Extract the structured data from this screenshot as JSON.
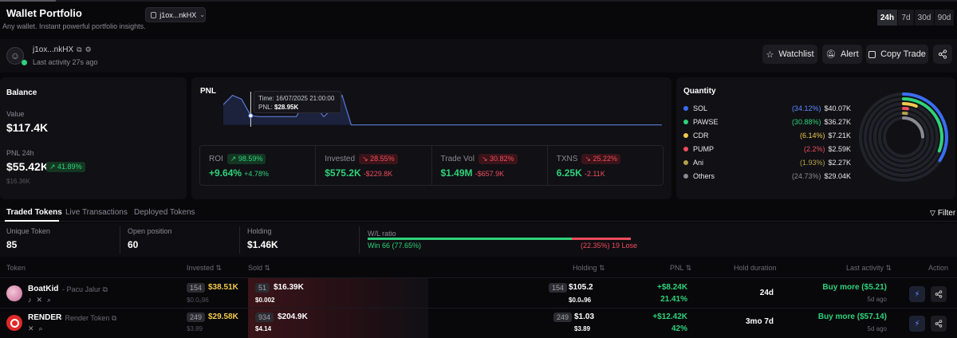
{
  "header": {
    "title": "Wallet Portfolio",
    "subtitle": "Any wallet. Instant powerful portfolio insights.",
    "wallet_select": "j1ox...nkHX",
    "timeframes": [
      "24h",
      "7d",
      "30d",
      "90d"
    ],
    "active_timeframe": "24h"
  },
  "wallet": {
    "address": "j1ox...nkHX",
    "last_activity": "Last activity 27s ago",
    "buttons": {
      "watchlist": "Watchlist",
      "alert": "Alert",
      "copy_trade": "Copy Trade"
    }
  },
  "balance": {
    "title": "Balance",
    "value_label": "Value",
    "value": "$117.4K",
    "pnl_label": "PNL 24h",
    "pnl_value": "$55.42K",
    "pnl_change": "↗ 41.89%",
    "pnl_sub": "$16.36K"
  },
  "pnl": {
    "title": "PNL",
    "tooltip_time": "Time: 16/07/2025 21:00:00",
    "tooltip_pnl": "PNL: ",
    "tooltip_pnl_value": "$28.95K",
    "chart_data": {
      "type": "area",
      "x": [
        0,
        1,
        2,
        3,
        4,
        5,
        6,
        7,
        8,
        9,
        10,
        11,
        12,
        13,
        14,
        15,
        16,
        17,
        18,
        19,
        20,
        21,
        22,
        23,
        24,
        25,
        26,
        27,
        28,
        29,
        30,
        31,
        32,
        33,
        34,
        35,
        36,
        37,
        38,
        39,
        40,
        41,
        42,
        43,
        44,
        45,
        46,
        47,
        48
      ],
      "values": [
        22,
        32,
        28,
        10,
        9,
        9,
        9,
        9,
        9,
        28,
        21,
        9,
        18,
        32,
        0,
        0,
        0,
        0,
        0,
        0,
        0,
        0,
        0,
        0,
        0,
        0,
        0,
        0,
        0,
        0,
        0,
        0,
        0,
        0,
        0,
        0,
        0,
        0,
        0,
        0,
        0,
        0,
        0,
        0,
        0,
        0,
        0,
        0,
        0
      ],
      "ylim": [
        -2,
        36
      ],
      "highlight_index": 3
    },
    "stats": [
      {
        "label": "ROI",
        "chip": "↗ 98.59%",
        "chip_color": "green",
        "value": "+9.64%",
        "value_color": "green",
        "sub": "+4.78%",
        "sub_color": "green"
      },
      {
        "label": "Invested",
        "chip": "↘ 28.55%",
        "chip_color": "red",
        "value": "$575.2K",
        "value_color": "green",
        "sub": "-$229.8K",
        "sub_color": "red"
      },
      {
        "label": "Trade Vol",
        "chip": "↘ 30.82%",
        "chip_color": "red",
        "value": "$1.49M",
        "value_color": "green",
        "sub": "-$657.9K",
        "sub_color": "red"
      },
      {
        "label": "TXNS",
        "chip": "↘ 25.22%",
        "chip_color": "red",
        "value": "6.25K",
        "value_color": "green",
        "sub": "-2.11K",
        "sub_color": "red"
      }
    ]
  },
  "quantity": {
    "title": "Quantity",
    "items": [
      {
        "name": "SOL",
        "pct": "(34.12%)",
        "pct_value": 34.12,
        "value": "$40.07K",
        "color": "#3b6df5",
        "pct_color": "#5b8bff"
      },
      {
        "name": "PAWSE",
        "pct": "(30.88%)",
        "pct_value": 30.88,
        "value": "$36.27K",
        "color": "#2fd27a",
        "pct_color": "#2fd27a"
      },
      {
        "name": "CDR",
        "pct": "(6.14%)",
        "pct_value": 6.14,
        "value": "$7.21K",
        "color": "#f2c94c",
        "pct_color": "#f2c94c"
      },
      {
        "name": "PUMP",
        "pct": "(2.2%)",
        "pct_value": 2.2,
        "value": "$2.59K",
        "color": "#ef4c5c",
        "pct_color": "#ef4c5c"
      },
      {
        "name": "Ani",
        "pct": "(1.93%)",
        "pct_value": 1.93,
        "value": "$2.27K",
        "color": "#b5a14a",
        "pct_color": "#b5a14a"
      },
      {
        "name": "Others",
        "pct": "(24.73%)",
        "pct_value": 24.73,
        "value": "$29.04K",
        "color": "#8a8a93",
        "pct_color": "#8a8a93"
      }
    ]
  },
  "tabs": {
    "items": [
      "Traded Tokens",
      "Live Transactions",
      "Deployed Tokens"
    ],
    "active": "Traded Tokens",
    "filter": "Filter"
  },
  "summary": {
    "unique_label": "Unique Token",
    "unique_value": "85",
    "open_label": "Open position",
    "open_value": "60",
    "holding_label": "Holding",
    "holding_value": "$1.46K",
    "wl_label": "W/L ratio",
    "win_text": "Win 66 (77.65%)",
    "lose_text": "(22.35%) 19 Lose",
    "win_pct": 77.65
  },
  "table": {
    "headers": {
      "token": "Token",
      "invested": "Invested",
      "sold": "Sold",
      "holding": "Holding",
      "pnl": "PNL",
      "hold_duration": "Hold duration",
      "last_activity": "Last activity",
      "action": "Action"
    },
    "rows": [
      {
        "symbol": "BoatKid",
        "name": "Pacu Jalur",
        "inv_count": "154",
        "inv_value": "$38.51K",
        "inv_sub": "$0.0₆96",
        "sold_count": "51",
        "sold_value": "$16.39K",
        "sold_sub": "$0.002",
        "hold_count": "154",
        "hold_value": "$105.2",
        "hold_sub": "$0.0₆96",
        "pnl_value": "+$8.24K",
        "pnl_pct": "21.41%",
        "duration": "24d",
        "last_action": "Buy more ($5.21)",
        "last_time": "5d ago"
      },
      {
        "symbol": "RENDER",
        "name": "Render Token",
        "inv_count": "249",
        "inv_value": "$29.58K",
        "inv_sub": "$3.89",
        "sold_count": "934",
        "sold_value": "$204.9K",
        "sold_sub": "$4.14",
        "hold_count": "249",
        "hold_value": "$1.03",
        "hold_sub": "$3.89",
        "pnl_value": "+$12.42K",
        "pnl_pct": "42%",
        "duration": "3mo 7d",
        "last_action": "Buy more ($57.14)",
        "last_time": "5d ago"
      }
    ]
  }
}
